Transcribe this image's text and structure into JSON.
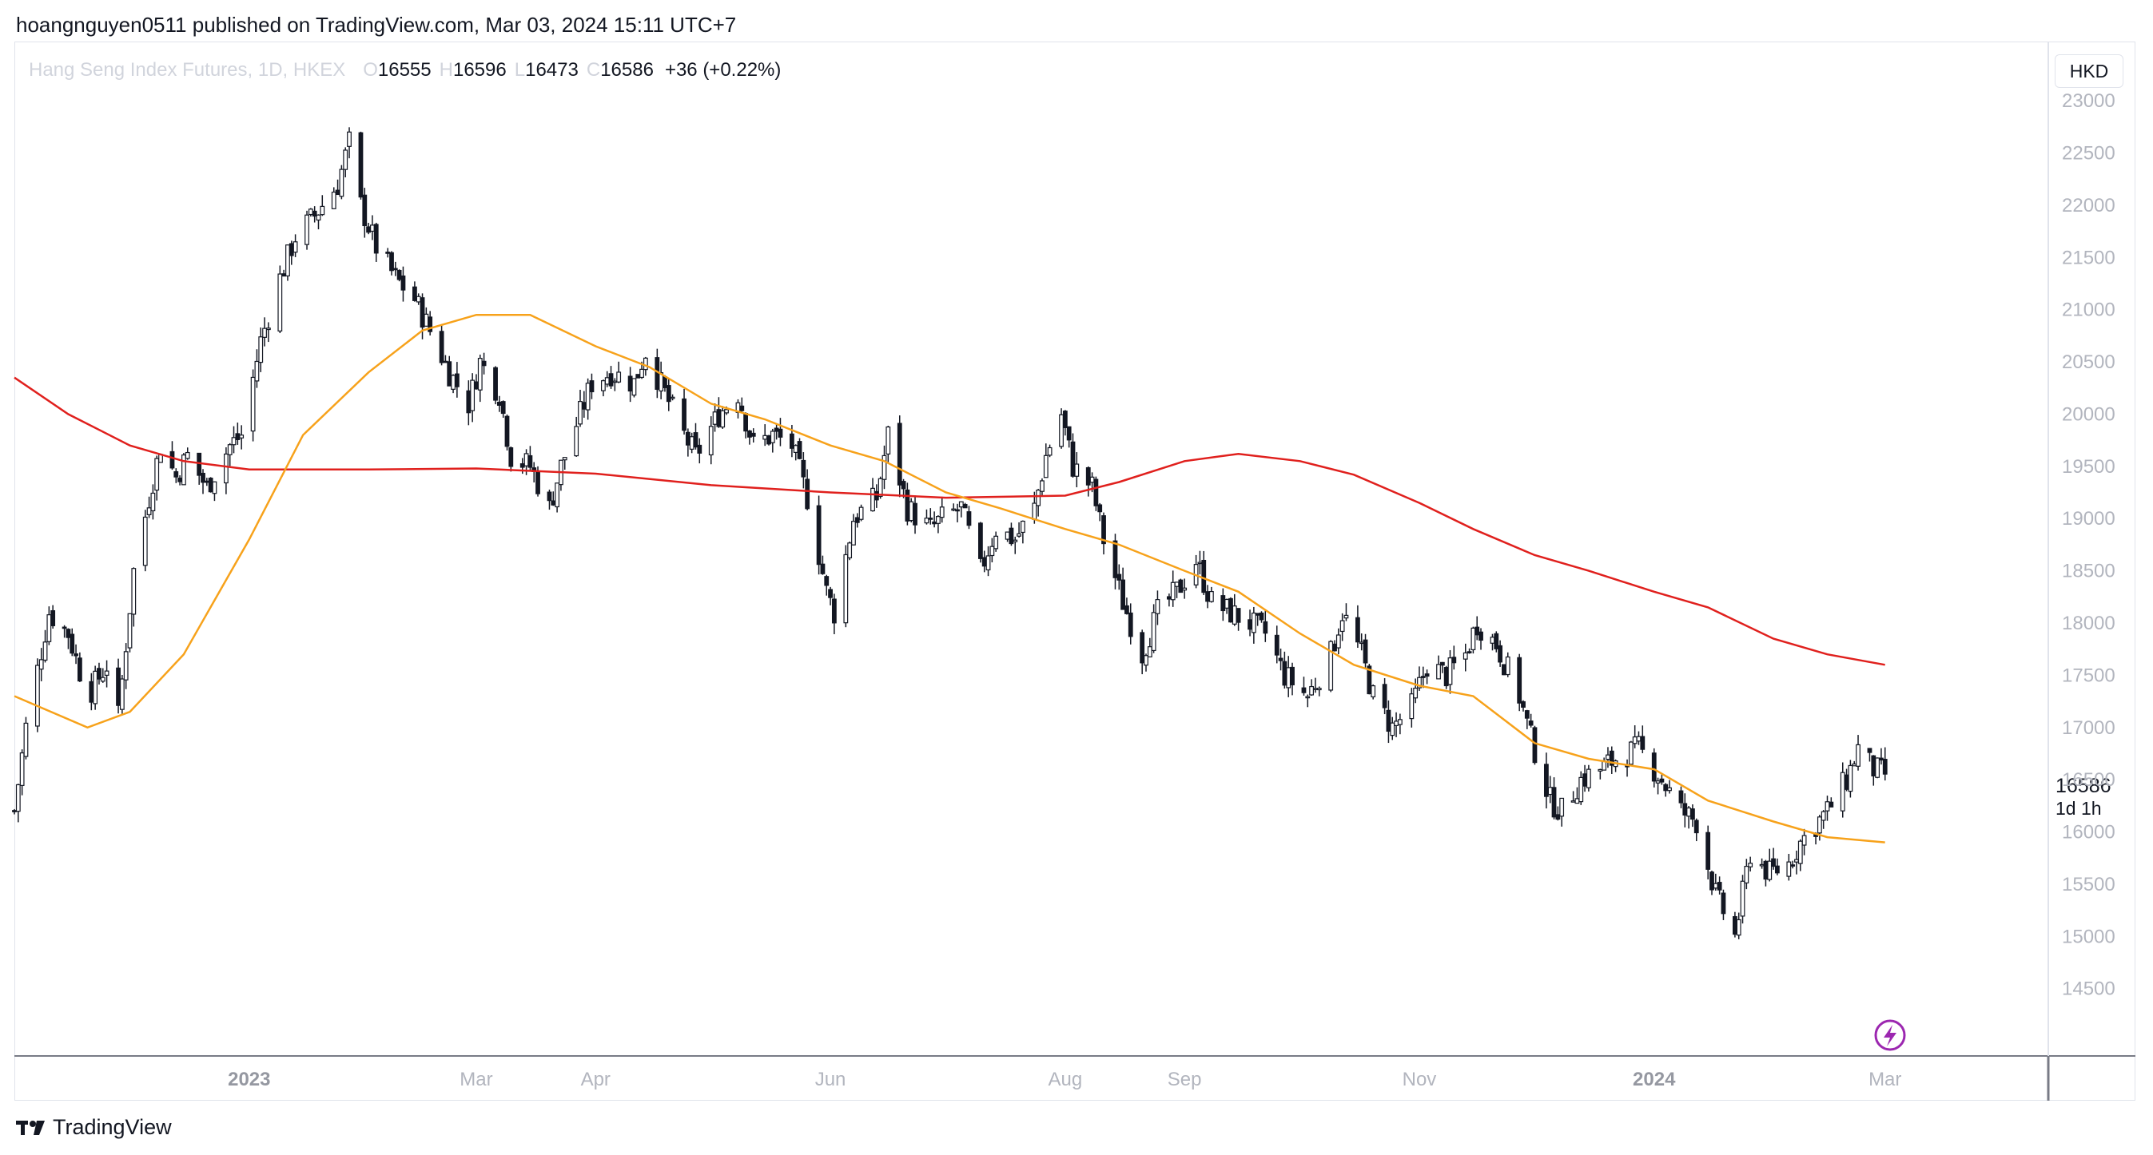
{
  "header": {
    "publisher_line": "hoangnguyen0511 published on TradingView.com, Mar 03, 2024 15:11 UTC+7"
  },
  "legend": {
    "symbol": "Hang Seng Index Futures, 1D, HKEX",
    "open_label": "O",
    "open": "16555",
    "high_label": "H",
    "high": "16596",
    "low_label": "L",
    "low": "16473",
    "close_label": "C",
    "close": "16586",
    "change": "+36 (+0.22%)"
  },
  "currency": "HKD",
  "last_price": {
    "value": "16586",
    "countdown": "1d 1h"
  },
  "footer": {
    "brand": "TradingView"
  },
  "colors": {
    "ma_fast": "#f7a21b",
    "ma_slow": "#e0201d",
    "candle": "#131722",
    "grid_border": "#e0e3eb",
    "axis_text": "#b2b5be",
    "bolt": "#9c27b0"
  },
  "chart_data": {
    "type": "candlestick",
    "xlabel": "",
    "ylabel": "",
    "ylim": [
      14100,
      23200
    ],
    "y_ticks": [
      "23000",
      "22500",
      "22000",
      "21500",
      "21000",
      "20500",
      "20000",
      "19500",
      "19000",
      "18500",
      "18000",
      "17500",
      "17000",
      "16500",
      "16000",
      "15500",
      "15000",
      "14500"
    ],
    "x_ticks": [
      {
        "label": "2023",
        "date": "2023-01-01",
        "bold": true
      },
      {
        "label": "Mar",
        "date": "2023-03-01",
        "bold": false
      },
      {
        "label": "Apr",
        "date": "2023-04-01",
        "bold": false
      },
      {
        "label": "Jun",
        "date": "2023-06-01",
        "bold": false
      },
      {
        "label": "Aug",
        "date": "2023-08-01",
        "bold": false
      },
      {
        "label": "Sep",
        "date": "2023-09-01",
        "bold": false
      },
      {
        "label": "Nov",
        "date": "2023-11-01",
        "bold": false
      },
      {
        "label": "2024",
        "date": "2024-01-01",
        "bold": true
      },
      {
        "label": "Mar",
        "date": "2024-03-01",
        "bold": false
      }
    ],
    "x_range": [
      "2022-11-01",
      "2024-03-05"
    ],
    "price_path": [
      [
        "2022-11-01",
        16200
      ],
      [
        "2022-11-04",
        17000
      ],
      [
        "2022-11-10",
        18100
      ],
      [
        "2022-11-15",
        17900
      ],
      [
        "2022-11-20",
        17300
      ],
      [
        "2022-11-25",
        17600
      ],
      [
        "2022-11-28",
        17100
      ],
      [
        "2022-12-02",
        18500
      ],
      [
        "2022-12-06",
        19200
      ],
      [
        "2022-12-09",
        19700
      ],
      [
        "2022-12-13",
        19400
      ],
      [
        "2022-12-16",
        19600
      ],
      [
        "2022-12-21",
        19300
      ],
      [
        "2022-12-27",
        19700
      ],
      [
        "2022-12-30",
        19800
      ],
      [
        "2023-01-04",
        20700
      ],
      [
        "2023-01-09",
        21300
      ],
      [
        "2023-01-13",
        21700
      ],
      [
        "2023-01-18",
        21900
      ],
      [
        "2023-01-24",
        22200
      ],
      [
        "2023-01-27",
        22600
      ],
      [
        "2023-01-30",
        22000
      ],
      [
        "2023-02-03",
        21600
      ],
      [
        "2023-02-08",
        21300
      ],
      [
        "2023-02-13",
        21100
      ],
      [
        "2023-02-17",
        20800
      ],
      [
        "2023-02-22",
        20400
      ],
      [
        "2023-02-27",
        20100
      ],
      [
        "2023-03-02",
        20500
      ],
      [
        "2023-03-07",
        20200
      ],
      [
        "2023-03-10",
        19600
      ],
      [
        "2023-03-15",
        19500
      ],
      [
        "2023-03-20",
        19100
      ],
      [
        "2023-03-23",
        19500
      ],
      [
        "2023-03-28",
        20000
      ],
      [
        "2023-03-31",
        20300
      ],
      [
        "2023-04-05",
        20400
      ],
      [
        "2023-04-11",
        20300
      ],
      [
        "2023-04-14",
        20600
      ],
      [
        "2023-04-19",
        20200
      ],
      [
        "2023-04-24",
        19800
      ],
      [
        "2023-04-27",
        19600
      ],
      [
        "2023-05-03",
        20000
      ],
      [
        "2023-05-08",
        20200
      ],
      [
        "2023-05-12",
        19700
      ],
      [
        "2023-05-17",
        19800
      ],
      [
        "2023-05-22",
        19700
      ],
      [
        "2023-05-26",
        19200
      ],
      [
        "2023-05-31",
        18300
      ],
      [
        "2023-06-02",
        18100
      ],
      [
        "2023-06-07",
        19000
      ],
      [
        "2023-06-13",
        19200
      ],
      [
        "2023-06-16",
        19800
      ],
      [
        "2023-06-21",
        19100
      ],
      [
        "2023-06-27",
        18900
      ],
      [
        "2023-06-30",
        19000
      ],
      [
        "2023-07-05",
        19100
      ],
      [
        "2023-07-10",
        18500
      ],
      [
        "2023-07-14",
        18900
      ],
      [
        "2023-07-19",
        18800
      ],
      [
        "2023-07-24",
        19100
      ],
      [
        "2023-07-27",
        19600
      ],
      [
        "2023-07-31",
        20000
      ],
      [
        "2023-08-03",
        19500
      ],
      [
        "2023-08-08",
        19300
      ],
      [
        "2023-08-11",
        18800
      ],
      [
        "2023-08-16",
        18200
      ],
      [
        "2023-08-21",
        17700
      ],
      [
        "2023-08-25",
        18100
      ],
      [
        "2023-08-30",
        18300
      ],
      [
        "2023-09-04",
        18600
      ],
      [
        "2023-09-08",
        18200
      ],
      [
        "2023-09-13",
        18100
      ],
      [
        "2023-09-18",
        18000
      ],
      [
        "2023-09-22",
        17900
      ],
      [
        "2023-09-27",
        17500
      ],
      [
        "2023-10-03",
        17300
      ],
      [
        "2023-10-09",
        17700
      ],
      [
        "2023-10-12",
        18100
      ],
      [
        "2023-10-17",
        17700
      ],
      [
        "2023-10-20",
        17300
      ],
      [
        "2023-10-25",
        17000
      ],
      [
        "2023-10-30",
        17200
      ],
      [
        "2023-11-03",
        17600
      ],
      [
        "2023-11-08",
        17500
      ],
      [
        "2023-11-13",
        17700
      ],
      [
        "2023-11-16",
        18000
      ],
      [
        "2023-11-21",
        17800
      ],
      [
        "2023-11-27",
        17300
      ],
      [
        "2023-11-30",
        16900
      ],
      [
        "2023-12-05",
        16300
      ],
      [
        "2023-12-08",
        16200
      ],
      [
        "2023-12-13",
        16500
      ],
      [
        "2023-12-18",
        16600
      ],
      [
        "2023-12-22",
        16700
      ],
      [
        "2023-12-28",
        16800
      ],
      [
        "2024-01-03",
        16500
      ],
      [
        "2024-01-08",
        16200
      ],
      [
        "2024-01-12",
        16100
      ],
      [
        "2024-01-17",
        15400
      ],
      [
        "2024-01-22",
        15000
      ],
      [
        "2024-01-26",
        15800
      ],
      [
        "2024-01-31",
        15600
      ],
      [
        "2024-02-05",
        15700
      ],
      [
        "2024-02-08",
        15900
      ],
      [
        "2024-02-15",
        16200
      ],
      [
        "2024-02-20",
        16500
      ],
      [
        "2024-02-23",
        16800
      ],
      [
        "2024-02-27",
        16600
      ],
      [
        "2024-03-01",
        16555
      ]
    ],
    "ma_fast_path": [
      [
        "2022-11-01",
        17300
      ],
      [
        "2022-11-20",
        17000
      ],
      [
        "2022-12-01",
        17150
      ],
      [
        "2022-12-15",
        17700
      ],
      [
        "2023-01-01",
        18800
      ],
      [
        "2023-01-15",
        19800
      ],
      [
        "2023-02-01",
        20400
      ],
      [
        "2023-02-15",
        20800
      ],
      [
        "2023-03-01",
        20950
      ],
      [
        "2023-03-15",
        20950
      ],
      [
        "2023-04-01",
        20650
      ],
      [
        "2023-04-15",
        20450
      ],
      [
        "2023-05-01",
        20100
      ],
      [
        "2023-05-15",
        19950
      ],
      [
        "2023-06-01",
        19700
      ],
      [
        "2023-06-15",
        19550
      ],
      [
        "2023-07-01",
        19250
      ],
      [
        "2023-07-15",
        19100
      ],
      [
        "2023-08-01",
        18900
      ],
      [
        "2023-08-15",
        18750
      ],
      [
        "2023-09-01",
        18500
      ],
      [
        "2023-09-15",
        18300
      ],
      [
        "2023-10-01",
        17900
      ],
      [
        "2023-10-15",
        17600
      ],
      [
        "2023-11-01",
        17400
      ],
      [
        "2023-11-15",
        17300
      ],
      [
        "2023-12-01",
        16850
      ],
      [
        "2023-12-15",
        16700
      ],
      [
        "2024-01-01",
        16600
      ],
      [
        "2024-01-15",
        16300
      ],
      [
        "2024-02-01",
        16100
      ],
      [
        "2024-02-15",
        15950
      ],
      [
        "2024-03-01",
        15900
      ]
    ],
    "ma_slow_path": [
      [
        "2022-11-01",
        20350
      ],
      [
        "2022-11-15",
        20000
      ],
      [
        "2022-12-01",
        19700
      ],
      [
        "2022-12-15",
        19550
      ],
      [
        "2023-01-01",
        19470
      ],
      [
        "2023-02-01",
        19470
      ],
      [
        "2023-03-01",
        19480
      ],
      [
        "2023-04-01",
        19430
      ],
      [
        "2023-05-01",
        19320
      ],
      [
        "2023-06-01",
        19250
      ],
      [
        "2023-07-01",
        19200
      ],
      [
        "2023-08-01",
        19220
      ],
      [
        "2023-08-15",
        19350
      ],
      [
        "2023-09-01",
        19550
      ],
      [
        "2023-09-15",
        19620
      ],
      [
        "2023-10-01",
        19550
      ],
      [
        "2023-10-15",
        19420
      ],
      [
        "2023-11-01",
        19150
      ],
      [
        "2023-11-15",
        18900
      ],
      [
        "2023-12-01",
        18650
      ],
      [
        "2023-12-15",
        18500
      ],
      [
        "2024-01-01",
        18300
      ],
      [
        "2024-01-15",
        18150
      ],
      [
        "2024-02-01",
        17850
      ],
      [
        "2024-02-15",
        17700
      ],
      [
        "2024-03-01",
        17600
      ]
    ]
  }
}
